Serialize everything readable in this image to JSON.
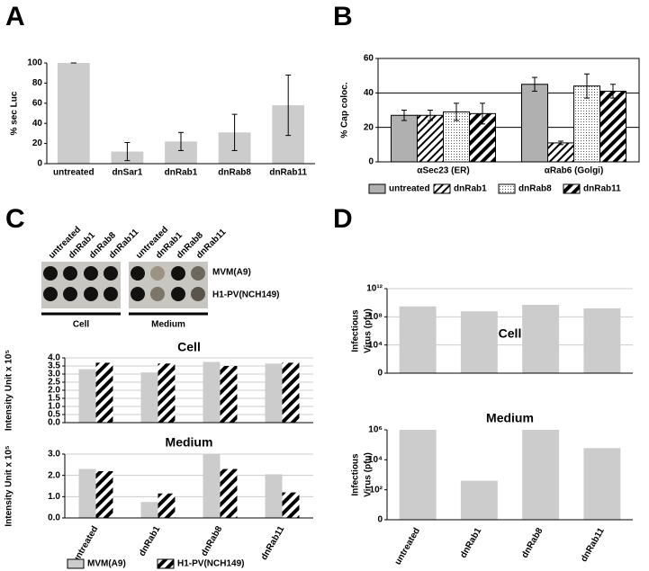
{
  "panel_labels": [
    "A",
    "B",
    "C",
    "D"
  ],
  "blot": {
    "columns": [
      "untreated",
      "dnRab1",
      "dnRab8",
      "dnRab11",
      "untreated",
      "dnRab1",
      "dnRab8",
      "dnRab11"
    ],
    "rows": [
      "MVM(A9)",
      "H1-PV(NCH149)"
    ],
    "groups": [
      "Cell",
      "Medium"
    ]
  },
  "chart_data": [
    {
      "type": "bar",
      "ylabel": "% sec Luc",
      "categories": [
        "untreated",
        "dnSar1",
        "dnRab1",
        "dnRab8",
        "dnRab11"
      ],
      "values": [
        100,
        12,
        22,
        31,
        58
      ],
      "errors": [
        0,
        9,
        9,
        18,
        30
      ],
      "color": "#cccccc",
      "ylim": [
        0,
        100
      ],
      "yticks": [
        0,
        20,
        40,
        60,
        80,
        100
      ],
      "grid": false
    },
    {
      "type": "bar",
      "ylabel": "% Cap coloc.",
      "categories": [
        "αSec23 (ER)",
        "αRab6 (Golgi)"
      ],
      "series": [
        {
          "name": "untreated",
          "color": "#b0b0b0",
          "pattern": "solid",
          "values": [
            27,
            45
          ],
          "errors": [
            3,
            4
          ]
        },
        {
          "name": "dnRab1",
          "color": "#000000",
          "pattern": "hatch",
          "values": [
            27,
            11
          ],
          "errors": [
            3,
            1
          ]
        },
        {
          "name": "dnRab8",
          "color": "#000000",
          "pattern": "dots",
          "values": [
            29,
            44
          ],
          "errors": [
            5,
            7
          ]
        },
        {
          "name": "dnRab11",
          "color": "#000000",
          "pattern": "stripes",
          "values": [
            28,
            41
          ],
          "errors": [
            6,
            4
          ]
        }
      ],
      "ylim": [
        0,
        60
      ],
      "yticks": [
        0,
        20,
        40,
        60
      ],
      "grid": true,
      "legend": "bottom"
    },
    {
      "type": "bar",
      "title": "Cell",
      "ylabel": "Intensity Unit x 10⁵",
      "categories": [
        null,
        null,
        null,
        null
      ],
      "series": [
        {
          "name": "MVM(A9)",
          "color": "#cccccc",
          "pattern": "solid",
          "values": [
            3.3,
            3.1,
            3.75,
            3.65
          ]
        },
        {
          "name": "H1-PV(NCH149)",
          "color": "#000000",
          "pattern": "stripes",
          "values": [
            3.7,
            3.65,
            3.5,
            3.7
          ]
        }
      ],
      "ylim": [
        0,
        4
      ],
      "yticks": [
        {
          "value": 0,
          "label": "0.0"
        },
        {
          "value": 0.5,
          "label": "0.5"
        },
        {
          "value": 1,
          "label": "1.0"
        },
        {
          "value": 1.5,
          "label": "1.5"
        },
        {
          "value": 2,
          "label": "2.0"
        },
        {
          "value": 2.5,
          "label": "2.5"
        },
        {
          "value": 3,
          "label": "3.0"
        },
        {
          "value": 3.5,
          "label": "3.5"
        },
        {
          "value": 4,
          "label": "4.0"
        }
      ],
      "grid": true
    },
    {
      "type": "bar",
      "title": "Medium",
      "ylabel": "Intensity Unit x 10⁵",
      "categories": [
        "untreated",
        "dnRab1",
        "dnRab8",
        "dnRab11"
      ],
      "series": [
        {
          "name": "MVM(A9)",
          "color": "#cccccc",
          "pattern": "solid",
          "values": [
            2.3,
            0.75,
            3.0,
            2.05
          ]
        },
        {
          "name": "H1-PV(NCH149)",
          "color": "#000000",
          "pattern": "stripes",
          "values": [
            2.2,
            1.15,
            2.3,
            1.2
          ]
        }
      ],
      "ylim": [
        0,
        3
      ],
      "yticks": [
        {
          "value": 0,
          "label": "0.0"
        },
        {
          "value": 1,
          "label": "1.0"
        },
        {
          "value": 2,
          "label": "2.0"
        },
        {
          "value": 3,
          "label": "3.0"
        }
      ],
      "grid": true,
      "legend": "bottom",
      "xlabel_rotate": true
    },
    {
      "type": "bar",
      "title": "Cell",
      "ylabel": [
        "Infectious",
        "Virus (pfu)"
      ],
      "categories": [
        null,
        null,
        null,
        null
      ],
      "values": [
        3000000000,
        600000000,
        5000000000,
        1600000000
      ],
      "color": "#cccccc",
      "log_y": true,
      "ylim": [
        1,
        1000000000000
      ],
      "yticks": [
        {
          "value": 1,
          "label": "0"
        },
        {
          "value": 10000,
          "label": "10⁴"
        },
        {
          "value": 100000000,
          "label": "10⁸"
        },
        {
          "value": 1000000000000,
          "label": "10¹²"
        }
      ],
      "grid": true
    },
    {
      "type": "bar",
      "title": "Medium",
      "ylabel": [
        "Infectious",
        "Virus (pfu)"
      ],
      "categories": [
        "untreated",
        "dnRab1",
        "dnRab8",
        "dnRab11"
      ],
      "values": [
        1000000,
        400,
        1000000,
        60000
      ],
      "color": "#cccccc",
      "log_y": true,
      "ylim": [
        1,
        1000000
      ],
      "yticks": [
        {
          "value": 1,
          "label": "0"
        },
        {
          "value": 100,
          "label": "10²"
        },
        {
          "value": 10000,
          "label": "10⁴"
        },
        {
          "value": 1000000,
          "label": "10⁶"
        }
      ],
      "grid": false,
      "xlabel_rotate": true
    }
  ]
}
